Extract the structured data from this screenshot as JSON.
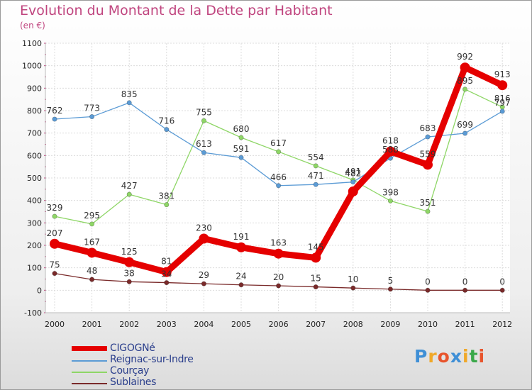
{
  "title": "Evolution du Montant de la Dette par Habitant",
  "unit_label": "(en €)",
  "logo": {
    "letters": [
      "P",
      "r",
      "o",
      "x",
      "i",
      "t",
      "i"
    ],
    "colors": [
      "#3f8fd6",
      "#f0a828",
      "#e8542c",
      "#3f8fd6",
      "#f0a828",
      "#3aa84a",
      "#e8542c"
    ]
  },
  "chart_data": {
    "type": "line",
    "title": "Evolution du Montant de la Dette par Habitant",
    "ylabel": "(en €)",
    "xlabel": "",
    "x": [
      "2000",
      "2001",
      "2002",
      "2003",
      "2004",
      "2005",
      "2006",
      "2007",
      "2008",
      "2009",
      "2010",
      "2011",
      "2012"
    ],
    "ylim": [
      -100,
      1100
    ],
    "yticks": [
      "-100",
      "0",
      "100",
      "200",
      "300",
      "400",
      "500",
      "600",
      "700",
      "800",
      "900",
      "1000",
      "1100"
    ],
    "legend_position": "bottom-left",
    "series": [
      {
        "name": "CIGOGNé",
        "color": "#e50000",
        "width": 9,
        "marker": 7,
        "values": [
          207,
          167,
          125,
          81,
          230,
          191,
          163,
          145,
          440,
          618,
          559,
          992,
          913
        ],
        "labels": [
          "207",
          "167",
          "125",
          "81",
          "230",
          "191",
          "163",
          "145",
          "",
          "618",
          "559",
          "992",
          "913"
        ]
      },
      {
        "name": "Reignac-sur-Indre",
        "color": "#5b9bd5",
        "width": 1.3,
        "marker": 3.2,
        "values": [
          762,
          773,
          835,
          716,
          613,
          591,
          466,
          471,
          482,
          588,
          683,
          699,
          797
        ],
        "labels": [
          "762",
          "773",
          "835",
          "716",
          "613",
          "591",
          "466",
          "471",
          "482",
          "588",
          "683",
          "699",
          "797"
        ]
      },
      {
        "name": "Courçay",
        "color": "#8ed666",
        "width": 1.3,
        "marker": 3.2,
        "values": [
          329,
          295,
          427,
          381,
          755,
          680,
          617,
          554,
          491,
          398,
          351,
          895,
          816
        ],
        "labels": [
          "329",
          "295",
          "427",
          "381",
          "755",
          "680",
          "617",
          "554",
          "491",
          "398",
          "351",
          "895",
          "816"
        ]
      },
      {
        "name": "Sublaines",
        "color": "#7a2a2a",
        "width": 1.3,
        "marker": 3.2,
        "values": [
          75,
          48,
          38,
          34,
          29,
          24,
          20,
          15,
          10,
          5,
          0,
          0,
          0
        ],
        "labels": [
          "75",
          "48",
          "38",
          "34",
          "29",
          "24",
          "20",
          "15",
          "10",
          "5",
          "0",
          "0",
          "0"
        ]
      }
    ]
  }
}
